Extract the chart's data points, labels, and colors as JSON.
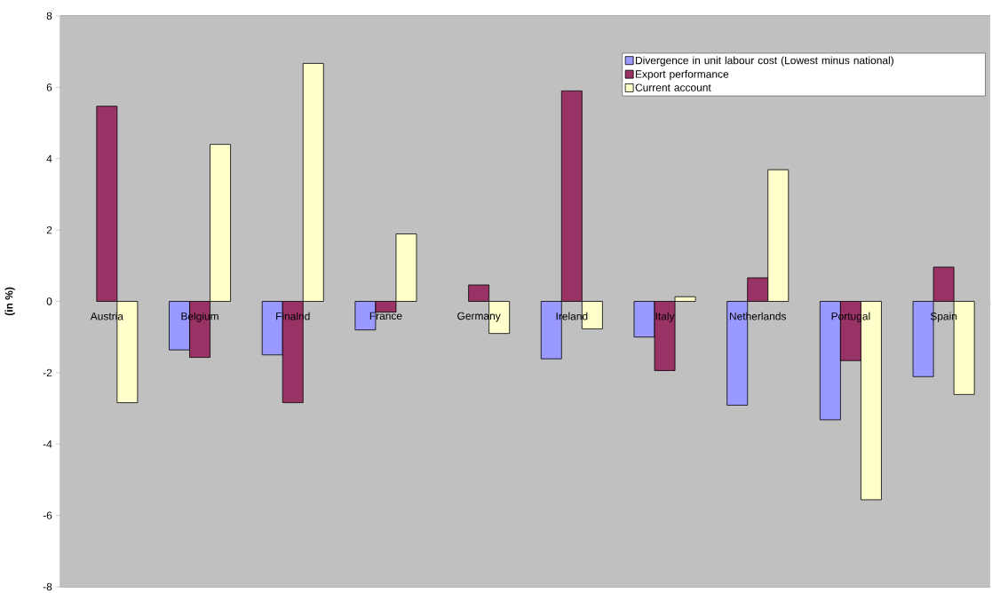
{
  "chart_data": {
    "type": "bar",
    "ylabel": "(in %)",
    "categories": [
      "Austria",
      "Belgium",
      "Finalnd",
      "France",
      "Germany",
      "Ireland",
      "Italy",
      "Netherlands",
      "Portugal",
      "Spain"
    ],
    "series": [
      {
        "name": "Divergence in unit labour cost (Lowest minus national)",
        "color": "#9999ff",
        "values": [
          null,
          -1.36,
          -1.5,
          -0.8,
          null,
          -1.61,
          -1.0,
          -2.91,
          -3.32,
          -2.11
        ]
      },
      {
        "name": "Export performance",
        "color": "#993366",
        "values": [
          5.47,
          -1.57,
          -2.84,
          -0.3,
          0.46,
          5.9,
          -1.94,
          0.66,
          -1.66,
          0.96
        ]
      },
      {
        "name": "Current account",
        "color": "#ffffcc",
        "values": [
          -2.84,
          4.4,
          6.67,
          1.89,
          -0.9,
          -0.77,
          0.13,
          3.69,
          -5.56,
          -2.61
        ]
      }
    ],
    "ylim": [
      -8,
      8
    ],
    "yticks": [
      -8,
      -6,
      -4,
      -2,
      0,
      2,
      4,
      6,
      8
    ],
    "grid": "y",
    "legend": "top right"
  }
}
